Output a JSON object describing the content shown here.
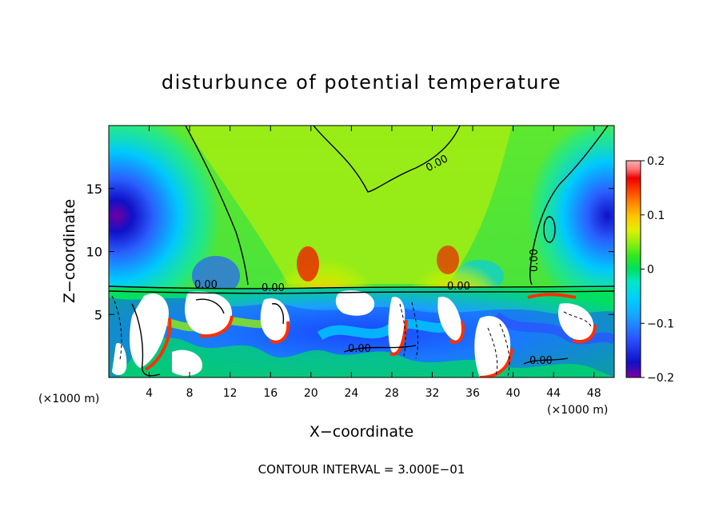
{
  "chart_data": {
    "type": "heatmap",
    "title": "disturbunce of potential temperature",
    "xlabel": "X−coordinate",
    "ylabel": "Z−coordinate",
    "x_unit_left": "(×1000 m)",
    "x_unit_right": "(×1000 m)",
    "xlim": [
      0,
      50
    ],
    "ylim": [
      0,
      20
    ],
    "x_ticks": [
      4,
      8,
      12,
      16,
      20,
      24,
      28,
      32,
      36,
      40,
      44,
      48
    ],
    "y_ticks": [
      5,
      10,
      15
    ],
    "colorbar": {
      "range": [
        -0.2,
        0.2
      ],
      "ticks": [
        0.2,
        0.1,
        0,
        -0.1,
        -0.2
      ],
      "tick_labels": [
        "0.2",
        "0.1",
        "0",
        "−0.1",
        "−0.2"
      ],
      "colors": [
        "#8000a0",
        "#1010c8",
        "#2a55ff",
        "#1aa0ff",
        "#00ccff",
        "#00e8c8",
        "#00e060",
        "#30e820",
        "#90ee10",
        "#e0f000",
        "#ffc800",
        "#ff8c00",
        "#ff4400",
        "#ee0000",
        "#ff7070",
        "#ffb0b0"
      ]
    },
    "contour_labels": [
      "0.00",
      "0.00",
      "0.00",
      "0.00",
      "0.00",
      "0.00",
      "0.00"
    ],
    "annotation": "CONTOUR INTERVAL = 3.000E−01",
    "grid": false
  }
}
